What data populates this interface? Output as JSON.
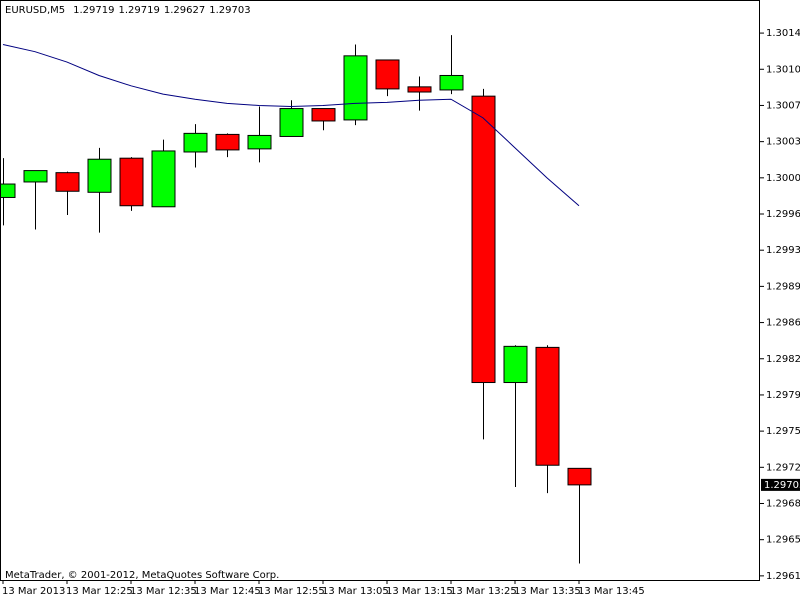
{
  "chart_data": {
    "type": "candlestick",
    "title": "EURUSD,M5",
    "footer": "MetaTrader, © 2001-2012, MetaQuotes Software Corp.",
    "categories": [
      "13 Mar 2013",
      null,
      "13 Mar 12:25",
      null,
      "13 Mar 12:35",
      null,
      "13 Mar 12:45",
      null,
      "13 Mar 12:55",
      null,
      "13 Mar 13:05",
      null,
      "13 Mar 13:15",
      null,
      "13 Mar 13:25",
      null,
      "13 Mar 13:35",
      null,
      "13 Mar 13:45"
    ],
    "open": [
      1.29981,
      1.29996,
      1.30005,
      1.29986,
      1.30019,
      1.29972,
      1.30025,
      1.30042,
      1.30028,
      1.3004,
      1.30067,
      1.30056,
      1.30114,
      1.30088,
      1.30085,
      1.30079,
      1.29802,
      1.29836,
      1.29719
    ],
    "high": [
      1.30019,
      1.30007,
      1.30006,
      1.30029,
      1.3002,
      1.30037,
      1.30052,
      1.30043,
      1.30069,
      1.30075,
      1.30067,
      1.30129,
      1.30114,
      1.30098,
      1.30138,
      1.30086,
      1.29838,
      1.29838,
      1.29719
    ],
    "low": [
      1.29954,
      1.2995,
      1.29964,
      1.29947,
      1.29968,
      1.29972,
      1.3001,
      1.3002,
      1.30015,
      1.3004,
      1.30046,
      1.30051,
      1.30079,
      1.30065,
      1.30081,
      1.29747,
      1.29701,
      1.29695,
      1.29627
    ],
    "close": [
      1.29994,
      1.30007,
      1.29987,
      1.30018,
      1.29973,
      1.30026,
      1.30043,
      1.30027,
      1.30041,
      1.30067,
      1.30055,
      1.30118,
      1.30086,
      1.30083,
      1.30099,
      1.29802,
      1.29837,
      1.29722,
      1.29703
    ],
    "up_color": "#00ff00",
    "down_color": "#ff0000",
    "ma": {
      "color": "#000080",
      "values": [
        1.30129,
        1.30122,
        1.30112,
        1.30099,
        1.30089,
        1.30081,
        1.30076,
        1.30072,
        1.3007,
        1.30069,
        1.3007,
        1.30072,
        1.30073,
        1.30075,
        1.30076,
        1.30058,
        1.30029,
        1.3,
        1.29973
      ]
    },
    "ylim": [
      1.29611,
      1.30172
    ],
    "yticks": [
      {
        "value": 1.3014,
        "label": "1.30140"
      },
      1.30105,
      {
        "value": 1.3007,
        "label": "1.30070"
      },
      1.30035,
      {
        "value": 1.3,
        "label": "1.30000"
      },
      1.29965,
      {
        "value": 1.2993,
        "label": "1.29930"
      },
      1.29895,
      {
        "value": 1.2986,
        "label": "1.29860"
      },
      1.29825,
      {
        "value": 1.2979,
        "label": "1.29790"
      },
      1.29755,
      {
        "value": 1.2972,
        "label": "1.29720"
      },
      1.29685,
      {
        "value": 1.2965,
        "label": "1.29650"
      },
      1.29615
    ],
    "grid": false
  }
}
